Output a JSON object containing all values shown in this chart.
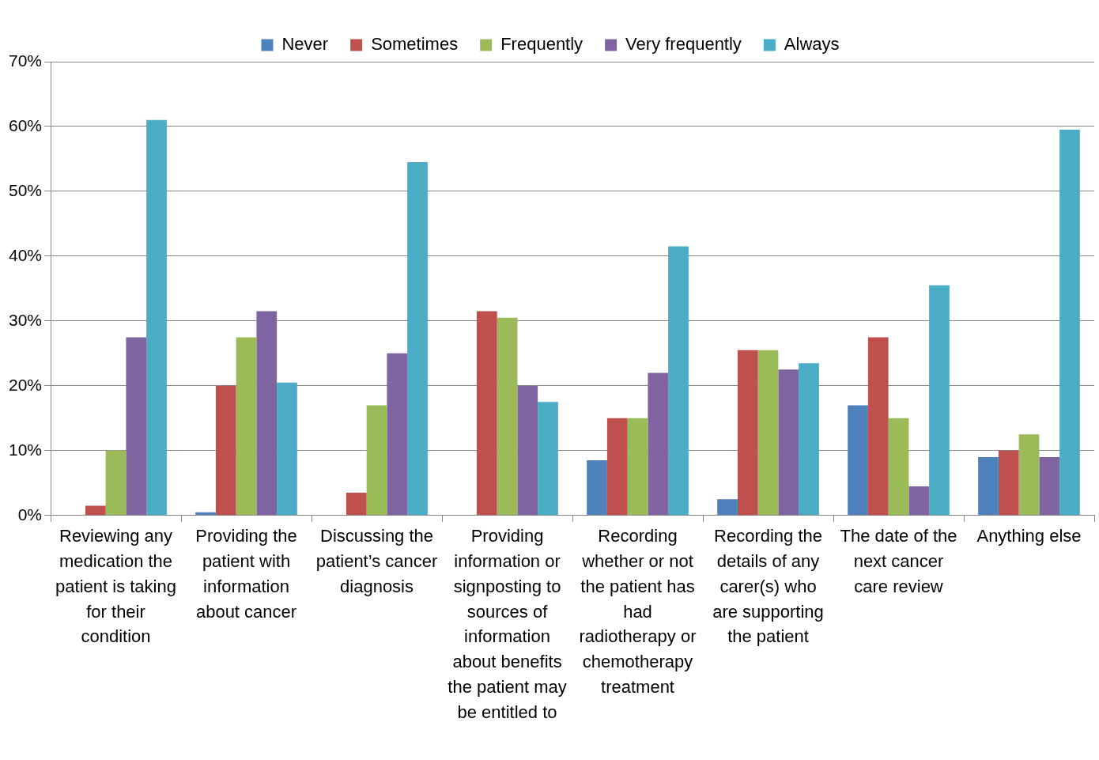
{
  "chart_data": {
    "type": "bar",
    "categories": [
      "Reviewing any medication the patient is taking for their condition",
      "Providing the patient with information about cancer",
      "Discussing the patient’s cancer diagnosis",
      "Providing information or signposting to sources of information about benefits the patient may be entitled to",
      "Recording whether or not the patient has had radiotherapy or chemotherapy treatment",
      "Recording the details of any carer(s) who are supporting the patient",
      "The date of the next cancer care review",
      "Anything else"
    ],
    "series": [
      {
        "name": "Never",
        "color": "#4f81bd",
        "values": [
          0,
          0.5,
          0,
          0,
          8.5,
          2.5,
          17,
          9
        ]
      },
      {
        "name": "Sometimes",
        "color": "#c0504d",
        "values": [
          1.5,
          20,
          3.5,
          31.5,
          15,
          25.5,
          27.5,
          10
        ]
      },
      {
        "name": "Frequently",
        "color": "#9bbb59",
        "values": [
          10,
          27.5,
          17,
          30.5,
          15,
          25.5,
          15,
          12.5
        ]
      },
      {
        "name": "Very frequently",
        "color": "#8064a2",
        "values": [
          27.5,
          31.5,
          25,
          20,
          22,
          22.5,
          4.5,
          9
        ]
      },
      {
        "name": "Always",
        "color": "#4bacc6",
        "values": [
          61,
          20.5,
          54.5,
          17.5,
          41.5,
          23.5,
          35.5,
          59.5
        ]
      }
    ],
    "ylim": [
      0,
      70
    ],
    "yticks": [
      {
        "value": 0,
        "label": "0%"
      },
      {
        "value": 10,
        "label": "10%"
      },
      {
        "value": 20,
        "label": "20%"
      },
      {
        "value": 30,
        "label": "30%"
      },
      {
        "value": 40,
        "label": "40%"
      },
      {
        "value": 50,
        "label": "50%"
      },
      {
        "value": 60,
        "label": "60%"
      },
      {
        "value": 70,
        "label": "70%"
      }
    ],
    "grid": "y",
    "legend": "top"
  }
}
